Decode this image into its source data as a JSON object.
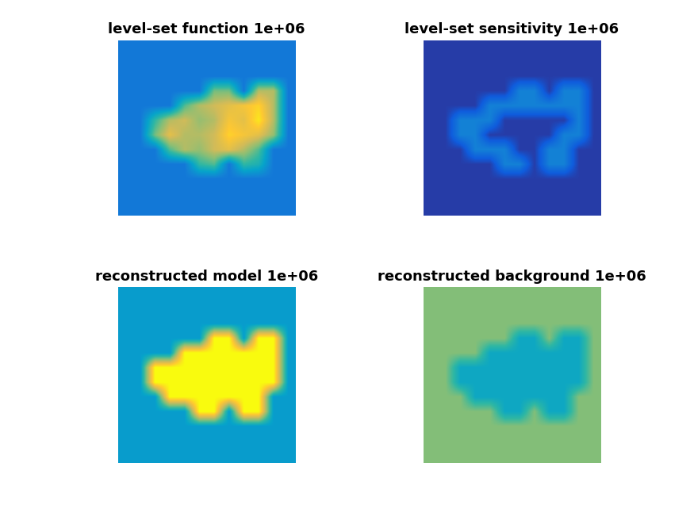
{
  "chart_data": [
    {
      "type": "heatmap",
      "title": "level-set function 1e+06",
      "tick_labels": false,
      "zlim": [
        0,
        1
      ],
      "cells": [
        [
          0.22,
          0.22,
          0.22,
          0.22,
          0.22,
          0.22,
          0.22,
          0.22,
          0.22,
          0.22,
          0.22,
          0.22
        ],
        [
          0.22,
          0.22,
          0.22,
          0.22,
          0.22,
          0.22,
          0.22,
          0.22,
          0.22,
          0.22,
          0.22,
          0.22
        ],
        [
          0.22,
          0.22,
          0.22,
          0.22,
          0.22,
          0.22,
          0.22,
          0.22,
          0.22,
          0.22,
          0.22,
          0.22
        ],
        [
          0.22,
          0.22,
          0.22,
          0.22,
          0.22,
          0.22,
          0.6,
          0.6,
          0.22,
          0.7,
          0.7,
          0.22
        ],
        [
          0.22,
          0.22,
          0.22,
          0.22,
          0.55,
          0.7,
          0.75,
          0.8,
          0.85,
          0.9,
          0.7,
          0.22
        ],
        [
          0.22,
          0.22,
          0.5,
          0.7,
          0.75,
          0.65,
          0.7,
          0.85,
          0.8,
          0.95,
          0.7,
          0.22
        ],
        [
          0.22,
          0.22,
          0.6,
          0.8,
          0.7,
          0.7,
          0.75,
          0.9,
          0.85,
          0.8,
          0.65,
          0.22
        ],
        [
          0.22,
          0.22,
          0.22,
          0.55,
          0.7,
          0.65,
          0.75,
          0.8,
          0.7,
          0.55,
          0.22,
          0.22
        ],
        [
          0.22,
          0.22,
          0.22,
          0.22,
          0.22,
          0.5,
          0.55,
          0.22,
          0.5,
          0.45,
          0.22,
          0.22
        ],
        [
          0.22,
          0.22,
          0.22,
          0.22,
          0.22,
          0.22,
          0.22,
          0.22,
          0.22,
          0.22,
          0.22,
          0.22
        ],
        [
          0.22,
          0.22,
          0.22,
          0.22,
          0.22,
          0.22,
          0.22,
          0.22,
          0.22,
          0.22,
          0.22,
          0.22
        ],
        [
          0.22,
          0.22,
          0.22,
          0.22,
          0.22,
          0.22,
          0.22,
          0.22,
          0.22,
          0.22,
          0.22,
          0.22
        ]
      ]
    },
    {
      "type": "heatmap",
      "title": "level-set sensitivity 1e+06",
      "tick_labels": false,
      "zlim": [
        0,
        1
      ],
      "cells": [
        [
          0.05,
          0.05,
          0.05,
          0.05,
          0.05,
          0.05,
          0.05,
          0.05,
          0.05,
          0.05,
          0.05,
          0.05
        ],
        [
          0.05,
          0.05,
          0.05,
          0.05,
          0.05,
          0.05,
          0.05,
          0.05,
          0.05,
          0.05,
          0.05,
          0.05
        ],
        [
          0.05,
          0.05,
          0.05,
          0.05,
          0.05,
          0.05,
          0.05,
          0.05,
          0.05,
          0.05,
          0.05,
          0.05
        ],
        [
          0.05,
          0.05,
          0.05,
          0.05,
          0.05,
          0.05,
          0.25,
          0.25,
          0.05,
          0.25,
          0.25,
          0.05
        ],
        [
          0.05,
          0.05,
          0.05,
          0.05,
          0.25,
          0.25,
          0.25,
          0.25,
          0.25,
          0.25,
          0.25,
          0.05
        ],
        [
          0.05,
          0.05,
          0.25,
          0.25,
          0.25,
          0.05,
          0.05,
          0.05,
          0.05,
          0.05,
          0.25,
          0.05
        ],
        [
          0.05,
          0.05,
          0.25,
          0.25,
          0.05,
          0.05,
          0.05,
          0.05,
          0.05,
          0.25,
          0.25,
          0.05
        ],
        [
          0.05,
          0.05,
          0.05,
          0.25,
          0.25,
          0.25,
          0.05,
          0.05,
          0.25,
          0.25,
          0.05,
          0.05
        ],
        [
          0.05,
          0.05,
          0.05,
          0.05,
          0.05,
          0.25,
          0.25,
          0.05,
          0.25,
          0.25,
          0.05,
          0.05
        ],
        [
          0.05,
          0.05,
          0.05,
          0.05,
          0.05,
          0.05,
          0.05,
          0.05,
          0.05,
          0.05,
          0.05,
          0.05
        ],
        [
          0.05,
          0.05,
          0.05,
          0.05,
          0.05,
          0.05,
          0.05,
          0.05,
          0.05,
          0.05,
          0.05,
          0.05
        ],
        [
          0.05,
          0.05,
          0.05,
          0.05,
          0.05,
          0.05,
          0.05,
          0.05,
          0.05,
          0.05,
          0.05,
          0.05
        ]
      ]
    },
    {
      "type": "heatmap",
      "title": "reconstructed model 1e+06",
      "tick_labels": false,
      "zlim": [
        0,
        1
      ],
      "cells": [
        [
          0.35,
          0.35,
          0.35,
          0.35,
          0.35,
          0.35,
          0.35,
          0.35,
          0.35,
          0.35,
          0.35,
          0.35
        ],
        [
          0.35,
          0.35,
          0.35,
          0.35,
          0.35,
          0.35,
          0.35,
          0.35,
          0.35,
          0.35,
          0.35,
          0.35
        ],
        [
          0.35,
          0.35,
          0.35,
          0.35,
          0.35,
          0.35,
          0.35,
          0.35,
          0.35,
          0.35,
          0.35,
          0.35
        ],
        [
          0.35,
          0.35,
          0.35,
          0.35,
          0.35,
          0.35,
          1.0,
          1.0,
          0.35,
          1.0,
          1.0,
          0.35
        ],
        [
          0.35,
          0.35,
          0.35,
          0.35,
          1.0,
          1.0,
          1.0,
          1.0,
          1.0,
          1.0,
          1.0,
          0.35
        ],
        [
          0.35,
          0.35,
          1.0,
          1.0,
          1.0,
          1.0,
          1.0,
          1.0,
          1.0,
          1.0,
          1.0,
          0.35
        ],
        [
          0.35,
          0.35,
          1.0,
          1.0,
          1.0,
          1.0,
          1.0,
          1.0,
          1.0,
          1.0,
          1.0,
          0.35
        ],
        [
          0.35,
          0.35,
          0.35,
          1.0,
          1.0,
          1.0,
          1.0,
          1.0,
          1.0,
          1.0,
          0.35,
          0.35
        ],
        [
          0.35,
          0.35,
          0.35,
          0.35,
          0.35,
          1.0,
          1.0,
          0.35,
          1.0,
          1.0,
          0.35,
          0.35
        ],
        [
          0.35,
          0.35,
          0.35,
          0.35,
          0.35,
          0.35,
          0.35,
          0.35,
          0.35,
          0.35,
          0.35,
          0.35
        ],
        [
          0.35,
          0.35,
          0.35,
          0.35,
          0.35,
          0.35,
          0.35,
          0.35,
          0.35,
          0.35,
          0.35,
          0.35
        ],
        [
          0.35,
          0.35,
          0.35,
          0.35,
          0.35,
          0.35,
          0.35,
          0.35,
          0.35,
          0.35,
          0.35,
          0.35
        ]
      ]
    },
    {
      "type": "heatmap",
      "title": "reconstructed background 1e+06",
      "tick_labels": false,
      "zlim": [
        0,
        1
      ],
      "cells": [
        [
          0.62,
          0.62,
          0.62,
          0.62,
          0.62,
          0.62,
          0.62,
          0.62,
          0.62,
          0.62,
          0.62,
          0.62
        ],
        [
          0.62,
          0.62,
          0.62,
          0.62,
          0.62,
          0.62,
          0.62,
          0.62,
          0.62,
          0.62,
          0.62,
          0.62
        ],
        [
          0.62,
          0.62,
          0.62,
          0.62,
          0.62,
          0.62,
          0.62,
          0.62,
          0.62,
          0.62,
          0.62,
          0.62
        ],
        [
          0.62,
          0.62,
          0.62,
          0.62,
          0.62,
          0.62,
          0.4,
          0.4,
          0.62,
          0.4,
          0.4,
          0.62
        ],
        [
          0.62,
          0.62,
          0.62,
          0.62,
          0.4,
          0.4,
          0.4,
          0.4,
          0.4,
          0.4,
          0.4,
          0.62
        ],
        [
          0.62,
          0.62,
          0.4,
          0.4,
          0.4,
          0.4,
          0.4,
          0.4,
          0.4,
          0.4,
          0.4,
          0.62
        ],
        [
          0.62,
          0.62,
          0.4,
          0.4,
          0.4,
          0.4,
          0.4,
          0.4,
          0.4,
          0.4,
          0.4,
          0.62
        ],
        [
          0.62,
          0.62,
          0.62,
          0.4,
          0.4,
          0.4,
          0.4,
          0.4,
          0.4,
          0.4,
          0.62,
          0.62
        ],
        [
          0.62,
          0.62,
          0.62,
          0.62,
          0.62,
          0.4,
          0.4,
          0.62,
          0.4,
          0.4,
          0.62,
          0.62
        ],
        [
          0.62,
          0.62,
          0.62,
          0.62,
          0.62,
          0.62,
          0.62,
          0.62,
          0.62,
          0.62,
          0.62,
          0.62
        ],
        [
          0.62,
          0.62,
          0.62,
          0.62,
          0.62,
          0.62,
          0.62,
          0.62,
          0.62,
          0.62,
          0.62,
          0.62
        ],
        [
          0.62,
          0.62,
          0.62,
          0.62,
          0.62,
          0.62,
          0.62,
          0.62,
          0.62,
          0.62,
          0.62,
          0.62
        ]
      ]
    }
  ]
}
